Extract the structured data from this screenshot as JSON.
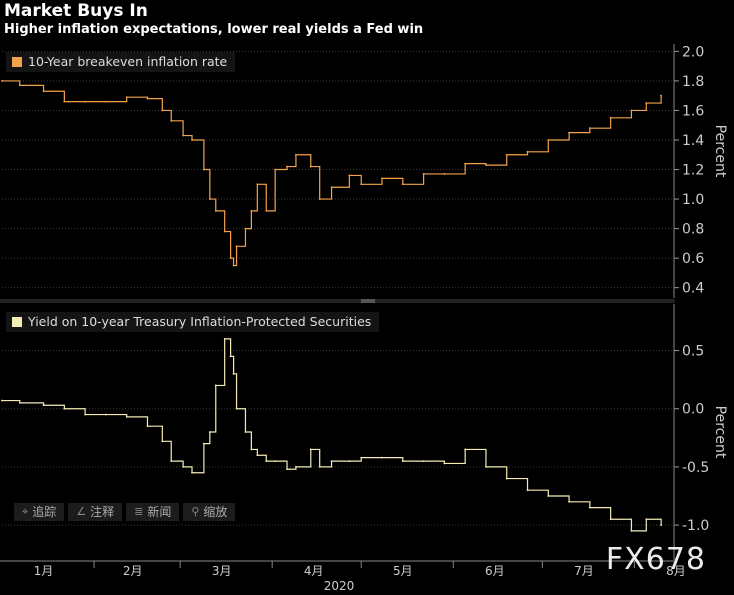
{
  "title": "Market Buys In",
  "subtitle": "Higher inflation expectations, lower real yields a Fed win",
  "watermark": "FX678",
  "toolbar": [
    {
      "label": "追踪",
      "icon": "crosshair-icon",
      "glyph": "⌖"
    },
    {
      "label": "注释",
      "icon": "pencil-icon",
      "glyph": "∠"
    },
    {
      "label": "新闻",
      "icon": "news-icon",
      "glyph": "≣"
    },
    {
      "label": "缩放",
      "icon": "zoom-icon",
      "glyph": "⚲"
    }
  ],
  "chart_data": [
    {
      "type": "line",
      "legend": "10-Year breakeven inflation rate",
      "color": "#f4a24b",
      "ylabel": "Percent",
      "ylim": [
        0.33,
        2.05
      ],
      "yticks": [
        0.4,
        0.6,
        0.8,
        1.0,
        1.2,
        1.4,
        1.6,
        1.8,
        2.0
      ],
      "x": [
        "2020-01-01",
        "2020-01-07",
        "2020-01-15",
        "2020-01-22",
        "2020-01-29",
        "2020-02-05",
        "2020-02-12",
        "2020-02-19",
        "2020-02-24",
        "2020-02-27",
        "2020-03-02",
        "2020-03-05",
        "2020-03-09",
        "2020-03-11",
        "2020-03-13",
        "2020-03-16",
        "2020-03-18",
        "2020-03-19",
        "2020-03-20",
        "2020-03-23",
        "2020-03-25",
        "2020-03-27",
        "2020-03-30",
        "2020-04-02",
        "2020-04-06",
        "2020-04-09",
        "2020-04-14",
        "2020-04-17",
        "2020-04-21",
        "2020-04-27",
        "2020-05-01",
        "2020-05-08",
        "2020-05-15",
        "2020-05-22",
        "2020-05-29",
        "2020-06-05",
        "2020-06-12",
        "2020-06-19",
        "2020-06-26",
        "2020-07-03",
        "2020-07-10",
        "2020-07-17",
        "2020-07-24",
        "2020-07-31",
        "2020-08-05",
        "2020-08-10"
      ],
      "values": [
        1.8,
        1.77,
        1.73,
        1.66,
        1.66,
        1.66,
        1.69,
        1.68,
        1.6,
        1.53,
        1.43,
        1.4,
        1.2,
        1.0,
        0.92,
        0.78,
        0.6,
        0.55,
        0.68,
        0.8,
        0.92,
        1.1,
        0.92,
        1.2,
        1.22,
        1.3,
        1.22,
        1.0,
        1.08,
        1.16,
        1.1,
        1.14,
        1.1,
        1.17,
        1.17,
        1.24,
        1.23,
        1.3,
        1.32,
        1.4,
        1.45,
        1.48,
        1.55,
        1.6,
        1.65,
        1.7
      ]
    },
    {
      "type": "line",
      "legend": "Yield on 10-year Treasury Inflation-Protected Securities",
      "color": "#f3ecb6",
      "ylabel": "Percent",
      "ylim": [
        -1.3,
        0.9
      ],
      "yticks": [
        -1.0,
        -0.5,
        0.0,
        0.5
      ],
      "x": [
        "2020-01-01",
        "2020-01-07",
        "2020-01-15",
        "2020-01-22",
        "2020-01-29",
        "2020-02-05",
        "2020-02-12",
        "2020-02-19",
        "2020-02-24",
        "2020-02-27",
        "2020-03-02",
        "2020-03-05",
        "2020-03-09",
        "2020-03-11",
        "2020-03-13",
        "2020-03-16",
        "2020-03-18",
        "2020-03-19",
        "2020-03-20",
        "2020-03-23",
        "2020-03-25",
        "2020-03-27",
        "2020-03-30",
        "2020-04-02",
        "2020-04-06",
        "2020-04-09",
        "2020-04-14",
        "2020-04-17",
        "2020-04-21",
        "2020-04-27",
        "2020-05-01",
        "2020-05-08",
        "2020-05-15",
        "2020-05-22",
        "2020-05-29",
        "2020-06-05",
        "2020-06-12",
        "2020-06-19",
        "2020-06-26",
        "2020-07-03",
        "2020-07-10",
        "2020-07-17",
        "2020-07-24",
        "2020-07-31",
        "2020-08-05",
        "2020-08-10"
      ],
      "values": [
        0.07,
        0.05,
        0.03,
        0.0,
        -0.05,
        -0.05,
        -0.07,
        -0.15,
        -0.28,
        -0.45,
        -0.5,
        -0.55,
        -0.3,
        -0.2,
        0.2,
        0.6,
        0.45,
        0.3,
        0.0,
        -0.2,
        -0.35,
        -0.4,
        -0.45,
        -0.45,
        -0.52,
        -0.5,
        -0.35,
        -0.5,
        -0.45,
        -0.45,
        -0.42,
        -0.42,
        -0.45,
        -0.45,
        -0.47,
        -0.35,
        -0.5,
        -0.6,
        -0.7,
        -0.75,
        -0.8,
        -0.85,
        -0.95,
        -1.05,
        -0.95,
        -1.0
      ]
    }
  ],
  "xaxis": {
    "ticks": [
      "1月",
      "2月",
      "3月",
      "4月",
      "5月",
      "6月",
      "7月",
      "8月"
    ],
    "tick_dates": [
      "2020-01-15",
      "2020-02-14",
      "2020-03-15",
      "2020-04-15",
      "2020-05-15",
      "2020-06-15",
      "2020-07-15",
      "2020-08-15"
    ],
    "year_label": "2020",
    "xlim": [
      "2020-01-01",
      "2020-08-14"
    ]
  }
}
